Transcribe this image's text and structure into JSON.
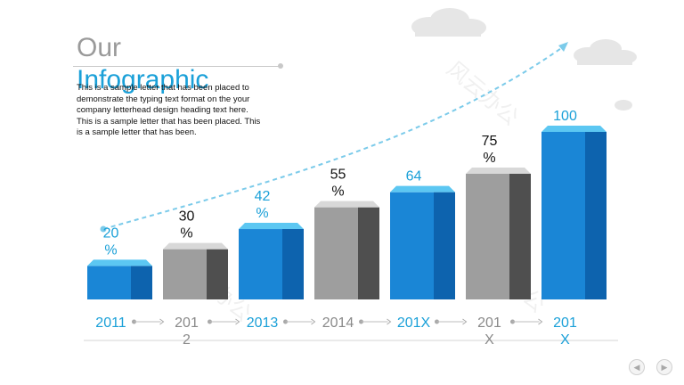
{
  "slide": {
    "title_line1": "Our",
    "title_line2": "Infographic",
    "body": "This is a sample letter that has been placed to demonstrate the typing text format on the your company letterhead design heading text here. This is a sample letter that has been placed. This is a sample letter that has been.",
    "watermark": "风云办公",
    "nav_prev_icon": "chevron-left-icon",
    "nav_next_icon": "chevron-right-icon"
  },
  "colors": {
    "blue_front": "#1a86d6",
    "blue_side": "#0d63ae",
    "blue_top": "#5cc7f2",
    "gray_front": "#9e9e9e",
    "gray_side": "#4f4f4f",
    "gray_top": "#d8d8d8",
    "label_blue": "#1aa0d8",
    "label_dark": "#111111",
    "year_gray": "#8a8a8a",
    "arrow": "#7ccbea"
  },
  "chart_data": {
    "type": "bar",
    "categories": [
      "2011",
      "2012",
      "2013",
      "2014",
      "201X",
      "201X",
      "201X"
    ],
    "category_labels": [
      "2011",
      "201\n2",
      "2013",
      "2014",
      "201X",
      "201\nX",
      "201\nX"
    ],
    "values": [
      20,
      30,
      42,
      55,
      64,
      75,
      100
    ],
    "value_labels": [
      "20\n%",
      "30\n%",
      "42\n%",
      "55\n%",
      "64",
      "75\n%",
      "100"
    ],
    "styles": [
      "blue",
      "gray",
      "blue",
      "gray",
      "blue",
      "gray",
      "blue"
    ],
    "ylim": [
      0,
      100
    ],
    "grid": false,
    "legend": "none",
    "trend_arrow": true
  }
}
